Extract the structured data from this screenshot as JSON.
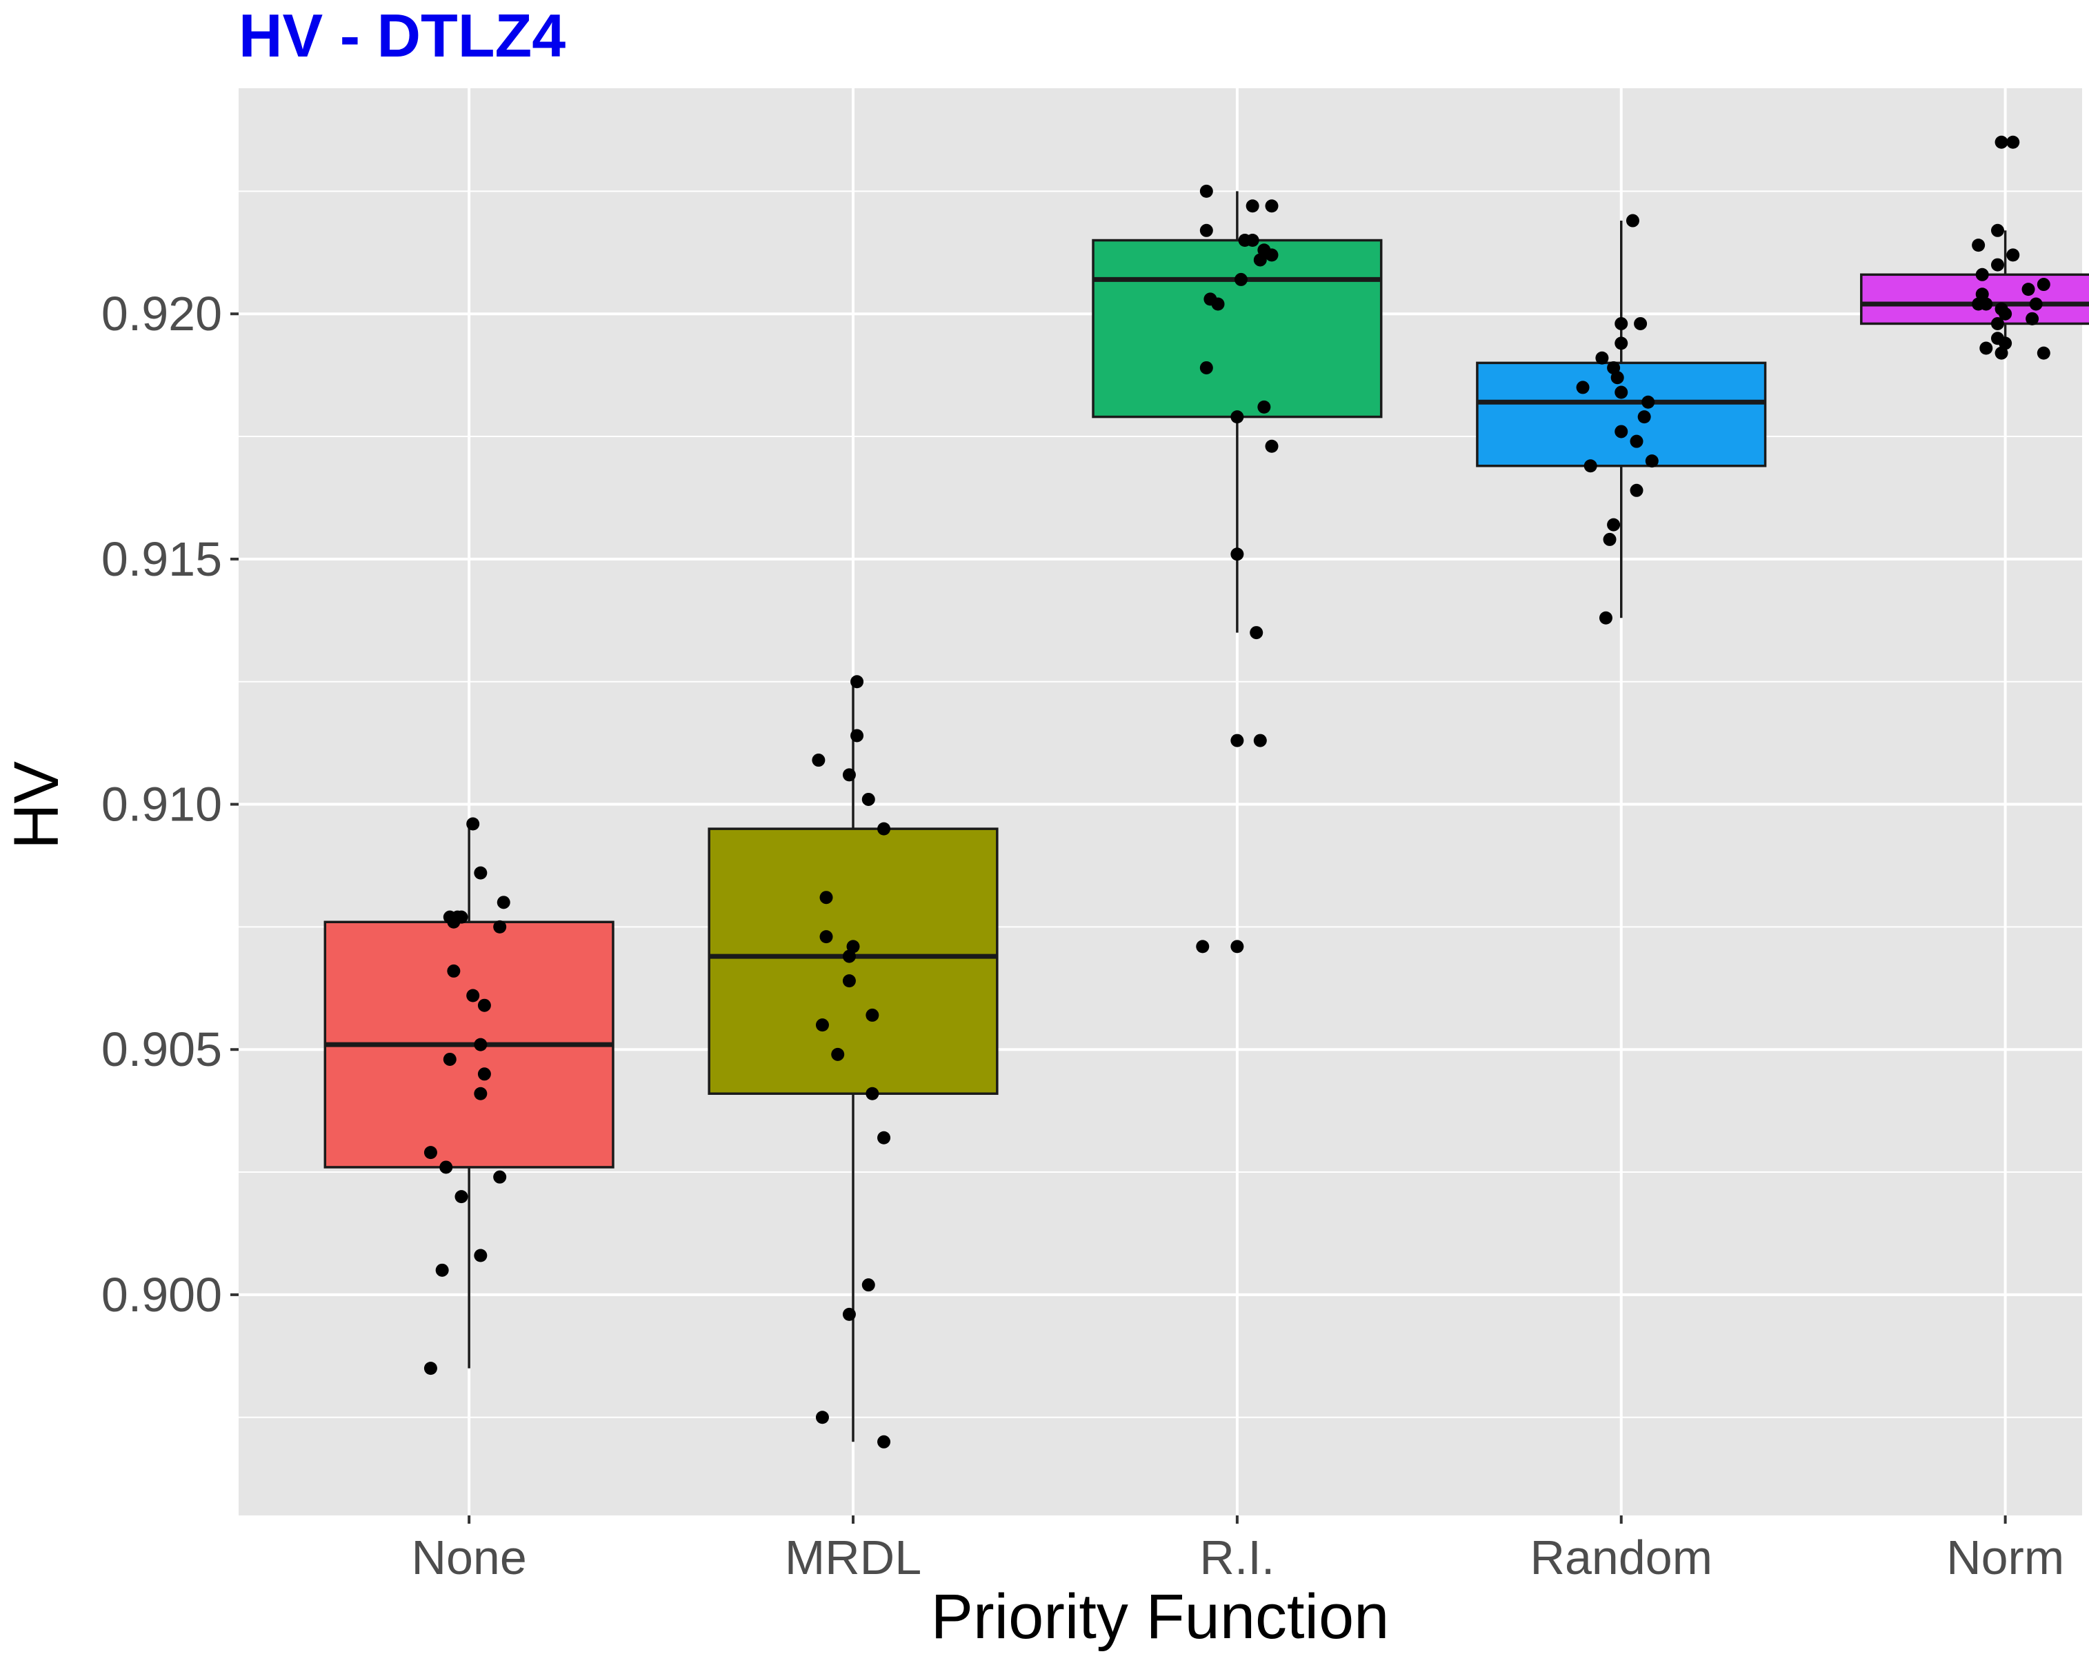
{
  "chart_data": {
    "type": "box",
    "title": "HV - DTLZ4",
    "xlabel": "Priority Function",
    "ylabel": "HV",
    "ylim": [
      0.8955,
      0.9246
    ],
    "yticks": [
      "0.900",
      "0.905",
      "0.910",
      "0.915",
      "0.920"
    ],
    "ytick_values": [
      0.9,
      0.905,
      0.91,
      0.915,
      0.92
    ],
    "grid": true,
    "legend": "none",
    "categories": [
      "None",
      "MRDL",
      "R.I.",
      "Random",
      "Norm"
    ],
    "colors": [
      "#F25F5C",
      "#949600",
      "#18B46B",
      "#169EF0",
      "#D944F0"
    ],
    "title_color": "#0000EE",
    "boxes": [
      {
        "category": "None",
        "whisker_low": 0.8985,
        "q1": 0.9026,
        "median": 0.9051,
        "q3": 0.9076,
        "whisker_high": 0.9096
      },
      {
        "category": "MRDL",
        "whisker_low": 0.897,
        "q1": 0.9041,
        "median": 0.9069,
        "q3": 0.9095,
        "whisker_high": 0.9125
      },
      {
        "category": "R.I.",
        "whisker_low": 0.9135,
        "q1": 0.9179,
        "median": 0.9207,
        "q3": 0.9215,
        "whisker_high": 0.9225
      },
      {
        "category": "Random",
        "whisker_low": 0.9138,
        "q1": 0.9169,
        "median": 0.9182,
        "q3": 0.919,
        "whisker_high": 0.9219
      },
      {
        "category": "Norm",
        "whisker_low": 0.9192,
        "q1": 0.9198,
        "median": 0.9202,
        "q3": 0.9208,
        "whisker_high": 0.9217
      }
    ],
    "points": [
      {
        "category": "None",
        "x_offset": 0.01,
        "y": 0.9096
      },
      {
        "category": "None",
        "x_offset": 0.03,
        "y": 0.9086
      },
      {
        "category": "None",
        "x_offset": 0.09,
        "y": 0.908
      },
      {
        "category": "None",
        "x_offset": -0.05,
        "y": 0.9077
      },
      {
        "category": "None",
        "x_offset": -0.03,
        "y": 0.9077
      },
      {
        "category": "None",
        "x_offset": -0.02,
        "y": 0.9077
      },
      {
        "category": "None",
        "x_offset": -0.04,
        "y": 0.9076
      },
      {
        "category": "None",
        "x_offset": 0.08,
        "y": 0.9075
      },
      {
        "category": "None",
        "x_offset": -0.04,
        "y": 0.9066
      },
      {
        "category": "None",
        "x_offset": 0.01,
        "y": 0.9061
      },
      {
        "category": "None",
        "x_offset": 0.04,
        "y": 0.9059
      },
      {
        "category": "None",
        "x_offset": 0.03,
        "y": 0.9051
      },
      {
        "category": "None",
        "x_offset": -0.05,
        "y": 0.9048
      },
      {
        "category": "None",
        "x_offset": 0.04,
        "y": 0.9045
      },
      {
        "category": "None",
        "x_offset": 0.03,
        "y": 0.9041
      },
      {
        "category": "None",
        "x_offset": -0.1,
        "y": 0.9029
      },
      {
        "category": "None",
        "x_offset": -0.06,
        "y": 0.9026
      },
      {
        "category": "None",
        "x_offset": 0.08,
        "y": 0.9024
      },
      {
        "category": "None",
        "x_offset": -0.02,
        "y": 0.902
      },
      {
        "category": "None",
        "x_offset": 0.03,
        "y": 0.9008
      },
      {
        "category": "None",
        "x_offset": -0.07,
        "y": 0.9005
      },
      {
        "category": "None",
        "x_offset": -0.1,
        "y": 0.8985
      },
      {
        "category": "MRDL",
        "x_offset": 0.01,
        "y": 0.9125
      },
      {
        "category": "MRDL",
        "x_offset": 0.01,
        "y": 0.9114
      },
      {
        "category": "MRDL",
        "x_offset": -0.09,
        "y": 0.9109
      },
      {
        "category": "MRDL",
        "x_offset": -0.01,
        "y": 0.9106
      },
      {
        "category": "MRDL",
        "x_offset": 0.04,
        "y": 0.9101
      },
      {
        "category": "MRDL",
        "x_offset": 0.08,
        "y": 0.9095
      },
      {
        "category": "MRDL",
        "x_offset": -0.07,
        "y": 0.9081
      },
      {
        "category": "MRDL",
        "x_offset": -0.07,
        "y": 0.9073
      },
      {
        "category": "MRDL",
        "x_offset": 0.0,
        "y": 0.9071
      },
      {
        "category": "MRDL",
        "x_offset": -0.01,
        "y": 0.9069
      },
      {
        "category": "MRDL",
        "x_offset": -0.01,
        "y": 0.9064
      },
      {
        "category": "MRDL",
        "x_offset": 0.05,
        "y": 0.9057
      },
      {
        "category": "MRDL",
        "x_offset": -0.08,
        "y": 0.9055
      },
      {
        "category": "MRDL",
        "x_offset": -0.04,
        "y": 0.9049
      },
      {
        "category": "MRDL",
        "x_offset": 0.05,
        "y": 0.9041
      },
      {
        "category": "MRDL",
        "x_offset": 0.08,
        "y": 0.9032
      },
      {
        "category": "MRDL",
        "x_offset": 0.04,
        "y": 0.9002
      },
      {
        "category": "MRDL",
        "x_offset": -0.01,
        "y": 0.8996
      },
      {
        "category": "MRDL",
        "x_offset": -0.08,
        "y": 0.8975
      },
      {
        "category": "MRDL",
        "x_offset": 0.08,
        "y": 0.897
      },
      {
        "category": "R.I.",
        "x_offset": -0.08,
        "y": 0.9225
      },
      {
        "category": "R.I.",
        "x_offset": 0.04,
        "y": 0.9222
      },
      {
        "category": "R.I.",
        "x_offset": 0.09,
        "y": 0.9222
      },
      {
        "category": "R.I.",
        "x_offset": -0.08,
        "y": 0.9217
      },
      {
        "category": "R.I.",
        "x_offset": 0.02,
        "y": 0.9215
      },
      {
        "category": "R.I.",
        "x_offset": 0.04,
        "y": 0.9215
      },
      {
        "category": "R.I.",
        "x_offset": 0.07,
        "y": 0.9213
      },
      {
        "category": "R.I.",
        "x_offset": 0.09,
        "y": 0.9212
      },
      {
        "category": "R.I.",
        "x_offset": 0.06,
        "y": 0.9211
      },
      {
        "category": "R.I.",
        "x_offset": 0.01,
        "y": 0.9207
      },
      {
        "category": "R.I.",
        "x_offset": -0.07,
        "y": 0.9203
      },
      {
        "category": "R.I.",
        "x_offset": -0.05,
        "y": 0.9202
      },
      {
        "category": "R.I.",
        "x_offset": -0.08,
        "y": 0.9189
      },
      {
        "category": "R.I.",
        "x_offset": 0.07,
        "y": 0.9181
      },
      {
        "category": "R.I.",
        "x_offset": 0.0,
        "y": 0.9179
      },
      {
        "category": "R.I.",
        "x_offset": 0.09,
        "y": 0.9173
      },
      {
        "category": "R.I.",
        "x_offset": 0.0,
        "y": 0.9151
      },
      {
        "category": "R.I.",
        "x_offset": 0.05,
        "y": 0.9135
      },
      {
        "category": "R.I.",
        "x_offset": 0.0,
        "y": 0.9113
      },
      {
        "category": "R.I.",
        "x_offset": 0.06,
        "y": 0.9113
      },
      {
        "category": "R.I.",
        "x_offset": -0.09,
        "y": 0.9071
      },
      {
        "category": "R.I.",
        "x_offset": 0.0,
        "y": 0.9071
      },
      {
        "category": "Random",
        "x_offset": 0.03,
        "y": 0.9219
      },
      {
        "category": "Random",
        "x_offset": 0.0,
        "y": 0.9198
      },
      {
        "category": "Random",
        "x_offset": 0.05,
        "y": 0.9198
      },
      {
        "category": "Random",
        "x_offset": 0.0,
        "y": 0.9194
      },
      {
        "category": "Random",
        "x_offset": -0.05,
        "y": 0.9191
      },
      {
        "category": "Random",
        "x_offset": -0.02,
        "y": 0.9189
      },
      {
        "category": "Random",
        "x_offset": -0.01,
        "y": 0.9187
      },
      {
        "category": "Random",
        "x_offset": -0.1,
        "y": 0.9185
      },
      {
        "category": "Random",
        "x_offset": 0.0,
        "y": 0.9184
      },
      {
        "category": "Random",
        "x_offset": 0.07,
        "y": 0.9182
      },
      {
        "category": "Random",
        "x_offset": 0.06,
        "y": 0.9179
      },
      {
        "category": "Random",
        "x_offset": 0.0,
        "y": 0.9176
      },
      {
        "category": "Random",
        "x_offset": 0.04,
        "y": 0.9174
      },
      {
        "category": "Random",
        "x_offset": 0.08,
        "y": 0.917
      },
      {
        "category": "Random",
        "x_offset": -0.08,
        "y": 0.9169
      },
      {
        "category": "Random",
        "x_offset": 0.04,
        "y": 0.9164
      },
      {
        "category": "Random",
        "x_offset": -0.02,
        "y": 0.9157
      },
      {
        "category": "Random",
        "x_offset": -0.03,
        "y": 0.9154
      },
      {
        "category": "Random",
        "x_offset": -0.04,
        "y": 0.9138
      },
      {
        "category": "Norm",
        "x_offset": -0.01,
        "y": 0.9235
      },
      {
        "category": "Norm",
        "x_offset": 0.02,
        "y": 0.9235
      },
      {
        "category": "Norm",
        "x_offset": -0.02,
        "y": 0.9217
      },
      {
        "category": "Norm",
        "x_offset": -0.07,
        "y": 0.9214
      },
      {
        "category": "Norm",
        "x_offset": 0.02,
        "y": 0.9212
      },
      {
        "category": "Norm",
        "x_offset": -0.02,
        "y": 0.921
      },
      {
        "category": "Norm",
        "x_offset": -0.06,
        "y": 0.9208
      },
      {
        "category": "Norm",
        "x_offset": 0.1,
        "y": 0.9206
      },
      {
        "category": "Norm",
        "x_offset": 0.06,
        "y": 0.9205
      },
      {
        "category": "Norm",
        "x_offset": -0.06,
        "y": 0.9204
      },
      {
        "category": "Norm",
        "x_offset": -0.07,
        "y": 0.9202
      },
      {
        "category": "Norm",
        "x_offset": -0.05,
        "y": 0.9202
      },
      {
        "category": "Norm",
        "x_offset": 0.08,
        "y": 0.9202
      },
      {
        "category": "Norm",
        "x_offset": -0.01,
        "y": 0.9201
      },
      {
        "category": "Norm",
        "x_offset": 0.0,
        "y": 0.92
      },
      {
        "category": "Norm",
        "x_offset": 0.07,
        "y": 0.9199
      },
      {
        "category": "Norm",
        "x_offset": -0.02,
        "y": 0.9198
      },
      {
        "category": "Norm",
        "x_offset": -0.02,
        "y": 0.9195
      },
      {
        "category": "Norm",
        "x_offset": 0.0,
        "y": 0.9194
      },
      {
        "category": "Norm",
        "x_offset": -0.05,
        "y": 0.9193
      },
      {
        "category": "Norm",
        "x_offset": -0.01,
        "y": 0.9192
      },
      {
        "category": "Norm",
        "x_offset": 0.1,
        "y": 0.9192
      }
    ]
  }
}
